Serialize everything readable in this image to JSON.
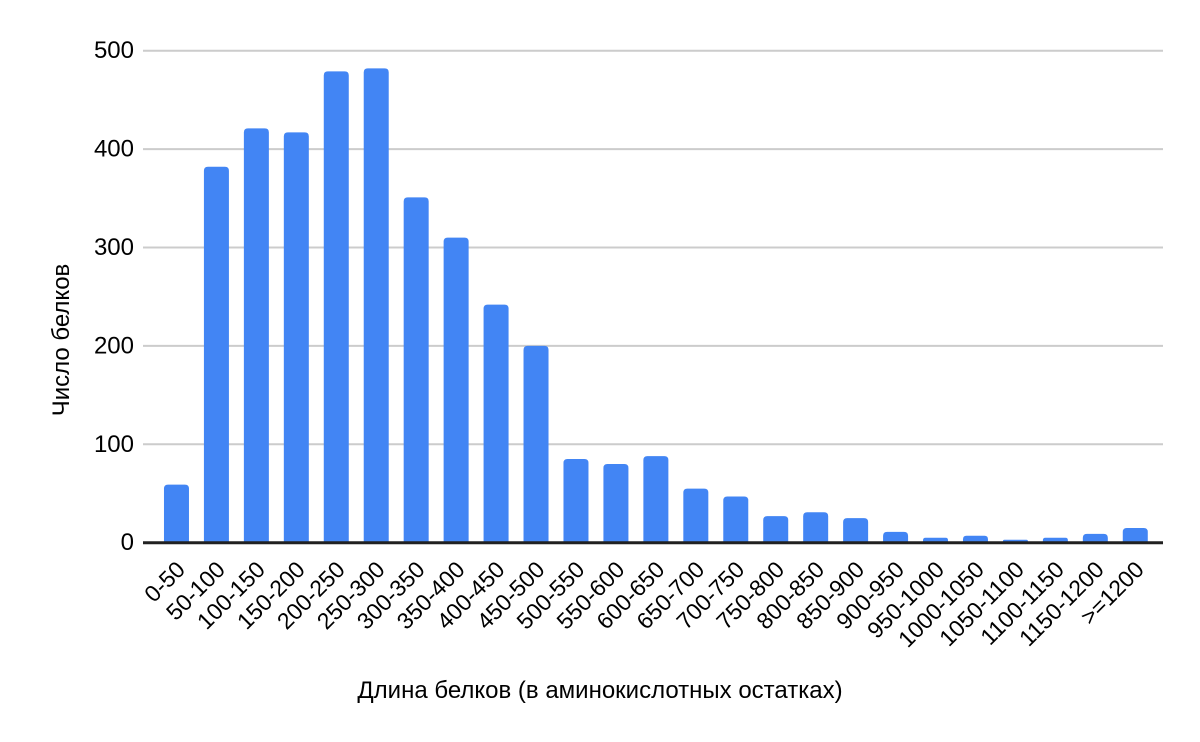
{
  "chart_data": {
    "type": "bar",
    "title": "",
    "xlabel": "Длина белков (в аминокислотных остатках)",
    "ylabel": "Число белков",
    "categories": [
      "0-50",
      "50-100",
      "100-150",
      "150-200",
      "200-250",
      "250-300",
      "300-350",
      "350-400",
      "400-450",
      "450-500",
      "500-550",
      "550-600",
      "600-650",
      "650-700",
      "700-750",
      "750-800",
      "800-850",
      "850-900",
      "900-950",
      "950-1000",
      "1000-1050",
      "1050-1100",
      "1100-1150",
      "1150-1200",
      ">=1200"
    ],
    "values": [
      59,
      382,
      421,
      417,
      479,
      482,
      351,
      310,
      242,
      200,
      85,
      80,
      88,
      55,
      47,
      27,
      31,
      25,
      11,
      5,
      7,
      3,
      5,
      9,
      15
    ],
    "ylim": [
      0,
      500
    ],
    "y_ticks": [
      0,
      100,
      200,
      300,
      400,
      500
    ],
    "grid": true,
    "legend": "none",
    "colors": {
      "bar": "#4285F4",
      "gridline": "#cccccc",
      "axis_line": "#212121",
      "text": "#000000",
      "background": "#ffffff"
    }
  }
}
